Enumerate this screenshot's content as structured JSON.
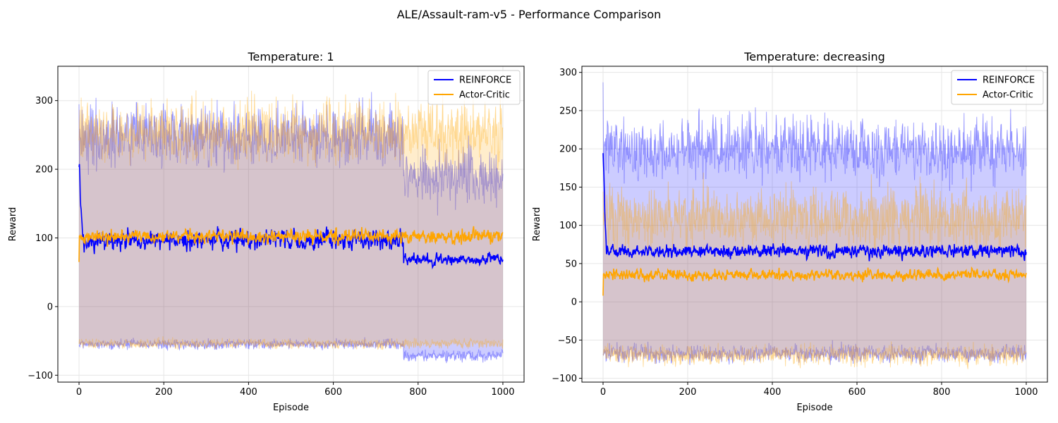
{
  "suptitle": "ALE/Assault-ram-v5 - Performance Comparison",
  "colors": {
    "reinforce": "#0000ff",
    "actor_critic": "#ffa500",
    "grid": "#e6e6e6",
    "axes": "#000000"
  },
  "chart_data": [
    {
      "type": "line",
      "title": "Temperature: 1",
      "xlabel": "Episode",
      "ylabel": "Reward",
      "xlim": [
        -50,
        1050
      ],
      "ylim": [
        -110,
        350
      ],
      "xticks": [
        0,
        200,
        400,
        600,
        800,
        1000
      ],
      "yticks": [
        -100,
        0,
        100,
        200,
        300
      ],
      "grid": true,
      "legend_position": "top-right",
      "n_episodes": 1000,
      "series": [
        {
          "name": "REINFORCE",
          "color": "#0000ff",
          "mean_segments": [
            {
              "x_range": [
                0,
                8
              ],
              "mean_start": 212,
              "mean_end": 95,
              "noise": 15
            },
            {
              "x_range": [
                8,
                765
              ],
              "mean": 97,
              "noise": 14
            },
            {
              "x_range": [
                765,
                1000
              ],
              "mean": 68,
              "noise": 9
            }
          ],
          "band_upper": [
            {
              "x_range": [
                0,
                765
              ],
              "mean": 248,
              "noise": 32
            },
            {
              "x_range": [
                765,
                1000
              ],
              "mean": 190,
              "noise": 30
            }
          ],
          "band_lower": [
            {
              "x_range": [
                0,
                765
              ],
              "mean": -55,
              "noise": 5
            },
            {
              "x_range": [
                765,
                1000
              ],
              "mean": -72,
              "noise": 6
            }
          ]
        },
        {
          "name": "Actor-Critic",
          "color": "#ffa500",
          "mean_segments": [
            {
              "x_range": [
                0,
                1000
              ],
              "mean": 102,
              "noise": 10,
              "start": 65
            }
          ],
          "band_upper": [
            {
              "x_range": [
                0,
                1000
              ],
              "mean": 255,
              "noise": 32
            }
          ],
          "band_lower": [
            {
              "x_range": [
                0,
                1000
              ],
              "mean": -54,
              "noise": 5
            }
          ]
        }
      ]
    },
    {
      "type": "line",
      "title": "Temperature: decreasing",
      "xlabel": "Episode",
      "ylabel": "Reward",
      "xlim": [
        -50,
        1050
      ],
      "ylim": [
        -105,
        308
      ],
      "xticks": [
        0,
        200,
        400,
        600,
        800,
        1000
      ],
      "yticks": [
        -100,
        -50,
        0,
        50,
        100,
        150,
        200,
        250,
        300
      ],
      "grid": true,
      "legend_position": "top-right",
      "n_episodes": 1000,
      "series": [
        {
          "name": "REINFORCE",
          "color": "#0000ff",
          "mean_segments": [
            {
              "x_range": [
                0,
                8
              ],
              "mean_start": 193,
              "mean_end": 70,
              "noise": 10
            },
            {
              "x_range": [
                8,
                1000
              ],
              "mean": 66,
              "noise": 9
            }
          ],
          "band_upper": [
            {
              "x_range": [
                0,
                1000
              ],
              "mean": 200,
              "noise": 28,
              "start": 287
            }
          ],
          "band_lower": [
            {
              "x_range": [
                0,
                1000
              ],
              "mean": -68,
              "noise": 8
            }
          ]
        },
        {
          "name": "Actor-Critic",
          "color": "#ffa500",
          "mean_segments": [
            {
              "x_range": [
                0,
                1000
              ],
              "mean": 35,
              "noise": 7,
              "start": 8
            }
          ],
          "band_upper": [
            {
              "x_range": [
                0,
                1000
              ],
              "mean": 110,
              "noise": 28
            }
          ],
          "band_lower": [
            {
              "x_range": [
                0,
                1000
              ],
              "mean": -70,
              "noise": 9
            }
          ]
        }
      ]
    }
  ]
}
